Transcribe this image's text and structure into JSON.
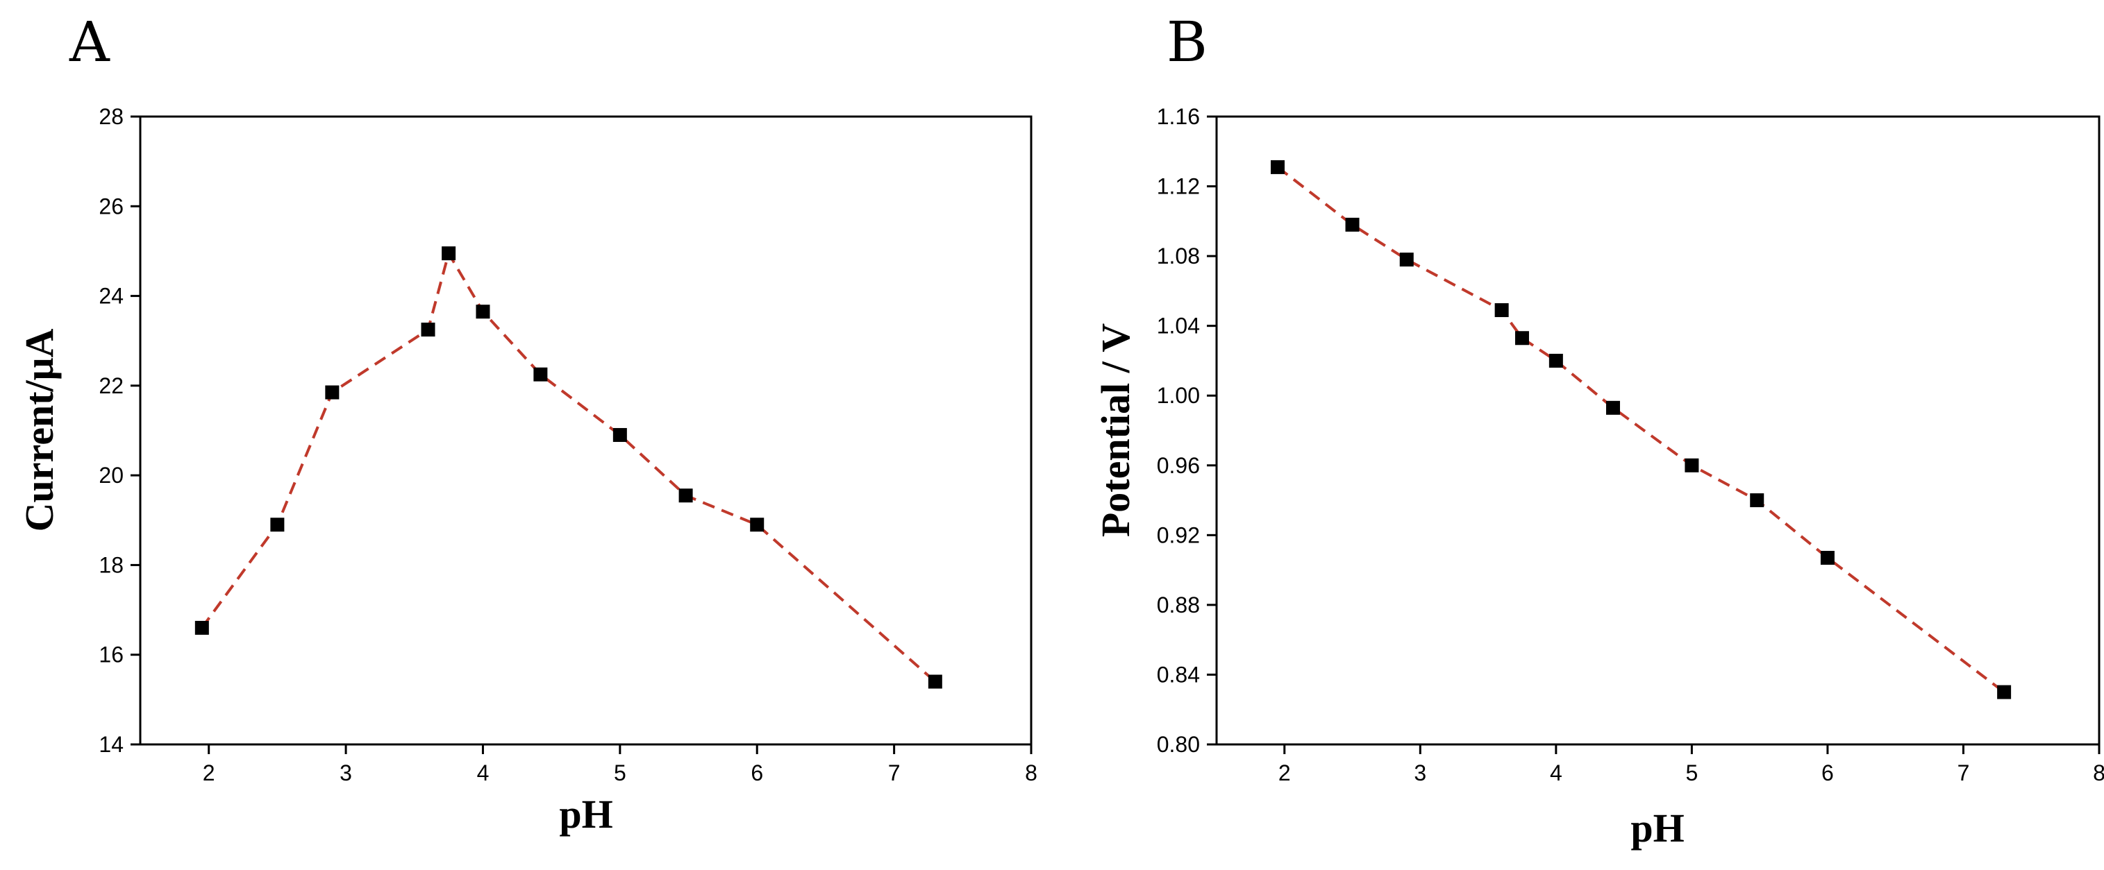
{
  "chart_data": [
    {
      "panel_label": "A",
      "type": "line",
      "xlabel": "pH",
      "ylabel": "Current/μA",
      "xlim": [
        1.5,
        8
      ],
      "ylim": [
        14,
        28
      ],
      "xticks": [
        2,
        3,
        4,
        5,
        6,
        7,
        8
      ],
      "yticks": [
        14,
        16,
        18,
        20,
        22,
        24,
        26,
        28
      ],
      "grid": false,
      "series": [
        {
          "marker": "square",
          "line_style": "dashed",
          "color": "#c0392b",
          "x": [
            1.95,
            2.5,
            2.9,
            3.6,
            3.75,
            4.0,
            4.42,
            5.0,
            5.48,
            6.0,
            7.3
          ],
          "y": [
            16.6,
            18.9,
            21.85,
            23.25,
            24.95,
            23.65,
            22.25,
            20.9,
            19.55,
            18.9,
            15.4
          ]
        }
      ]
    },
    {
      "panel_label": "B",
      "type": "line",
      "xlabel": "pH",
      "ylabel": "Potential / V",
      "xlim": [
        1.5,
        8
      ],
      "ylim": [
        0.8,
        1.16
      ],
      "xticks": [
        2,
        3,
        4,
        5,
        6,
        7,
        8
      ],
      "yticks": [
        "0.80",
        "0.84",
        "0.88",
        "0.92",
        "0.96",
        "1.00",
        "1.04",
        "1.08",
        "1.12",
        "1.16"
      ],
      "grid": false,
      "series": [
        {
          "marker": "square",
          "line_style": "dashed",
          "color": "#c0392b",
          "x": [
            1.95,
            2.5,
            2.9,
            3.6,
            3.75,
            4.0,
            4.42,
            5.0,
            5.48,
            6.0,
            7.3
          ],
          "y": [
            1.131,
            1.098,
            1.078,
            1.049,
            1.033,
            1.02,
            0.993,
            0.96,
            0.94,
            0.907,
            0.83
          ]
        }
      ]
    }
  ]
}
